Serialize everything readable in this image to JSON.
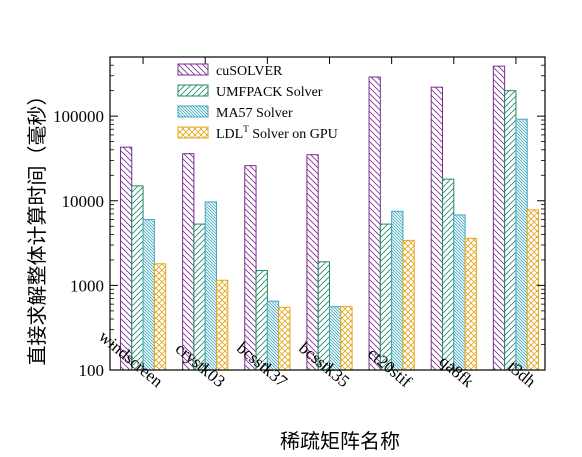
{
  "chart_data": {
    "type": "bar",
    "title": "",
    "xlabel": "稀疏矩阵名称",
    "ylabel": "直接求解整体计算时间（毫秒）",
    "yscale": "log",
    "ylim": [
      100,
      500000
    ],
    "yticks": [
      100,
      1000,
      10000,
      100000
    ],
    "ytick_labels": [
      "100",
      "1000",
      "10000",
      "100000"
    ],
    "categories": [
      "windscreen",
      "crystk03",
      "bcsstk37",
      "bcsstk35",
      "ct20stif",
      "qa8fk",
      "t3dh"
    ],
    "legend_position": "top-left (inside)",
    "grid": false,
    "series": [
      {
        "name": "cuSOLVER",
        "color": "#7b2d8e",
        "hatch": "diagonal-down",
        "values": [
          43000,
          36000,
          26000,
          35000,
          290000,
          220000,
          390000
        ]
      },
      {
        "name": "UMFPACK Solver",
        "color": "#1e8a63",
        "hatch": "diagonal-up",
        "values": [
          15000,
          5300,
          1500,
          1900,
          5300,
          18000,
          200000
        ]
      },
      {
        "name": "MA57 Solver",
        "color": "#3fa8be",
        "hatch": "dense-diagonal",
        "values": [
          6000,
          9700,
          650,
          560,
          7500,
          6800,
          92000
        ]
      },
      {
        "name": "LDL",
        "name_sup": "T",
        "name_suffix": " Solver on GPU",
        "color": "#e5a51c",
        "hatch": "cross",
        "values": [
          1800,
          1150,
          550,
          560,
          3400,
          3600,
          7800
        ]
      }
    ]
  }
}
